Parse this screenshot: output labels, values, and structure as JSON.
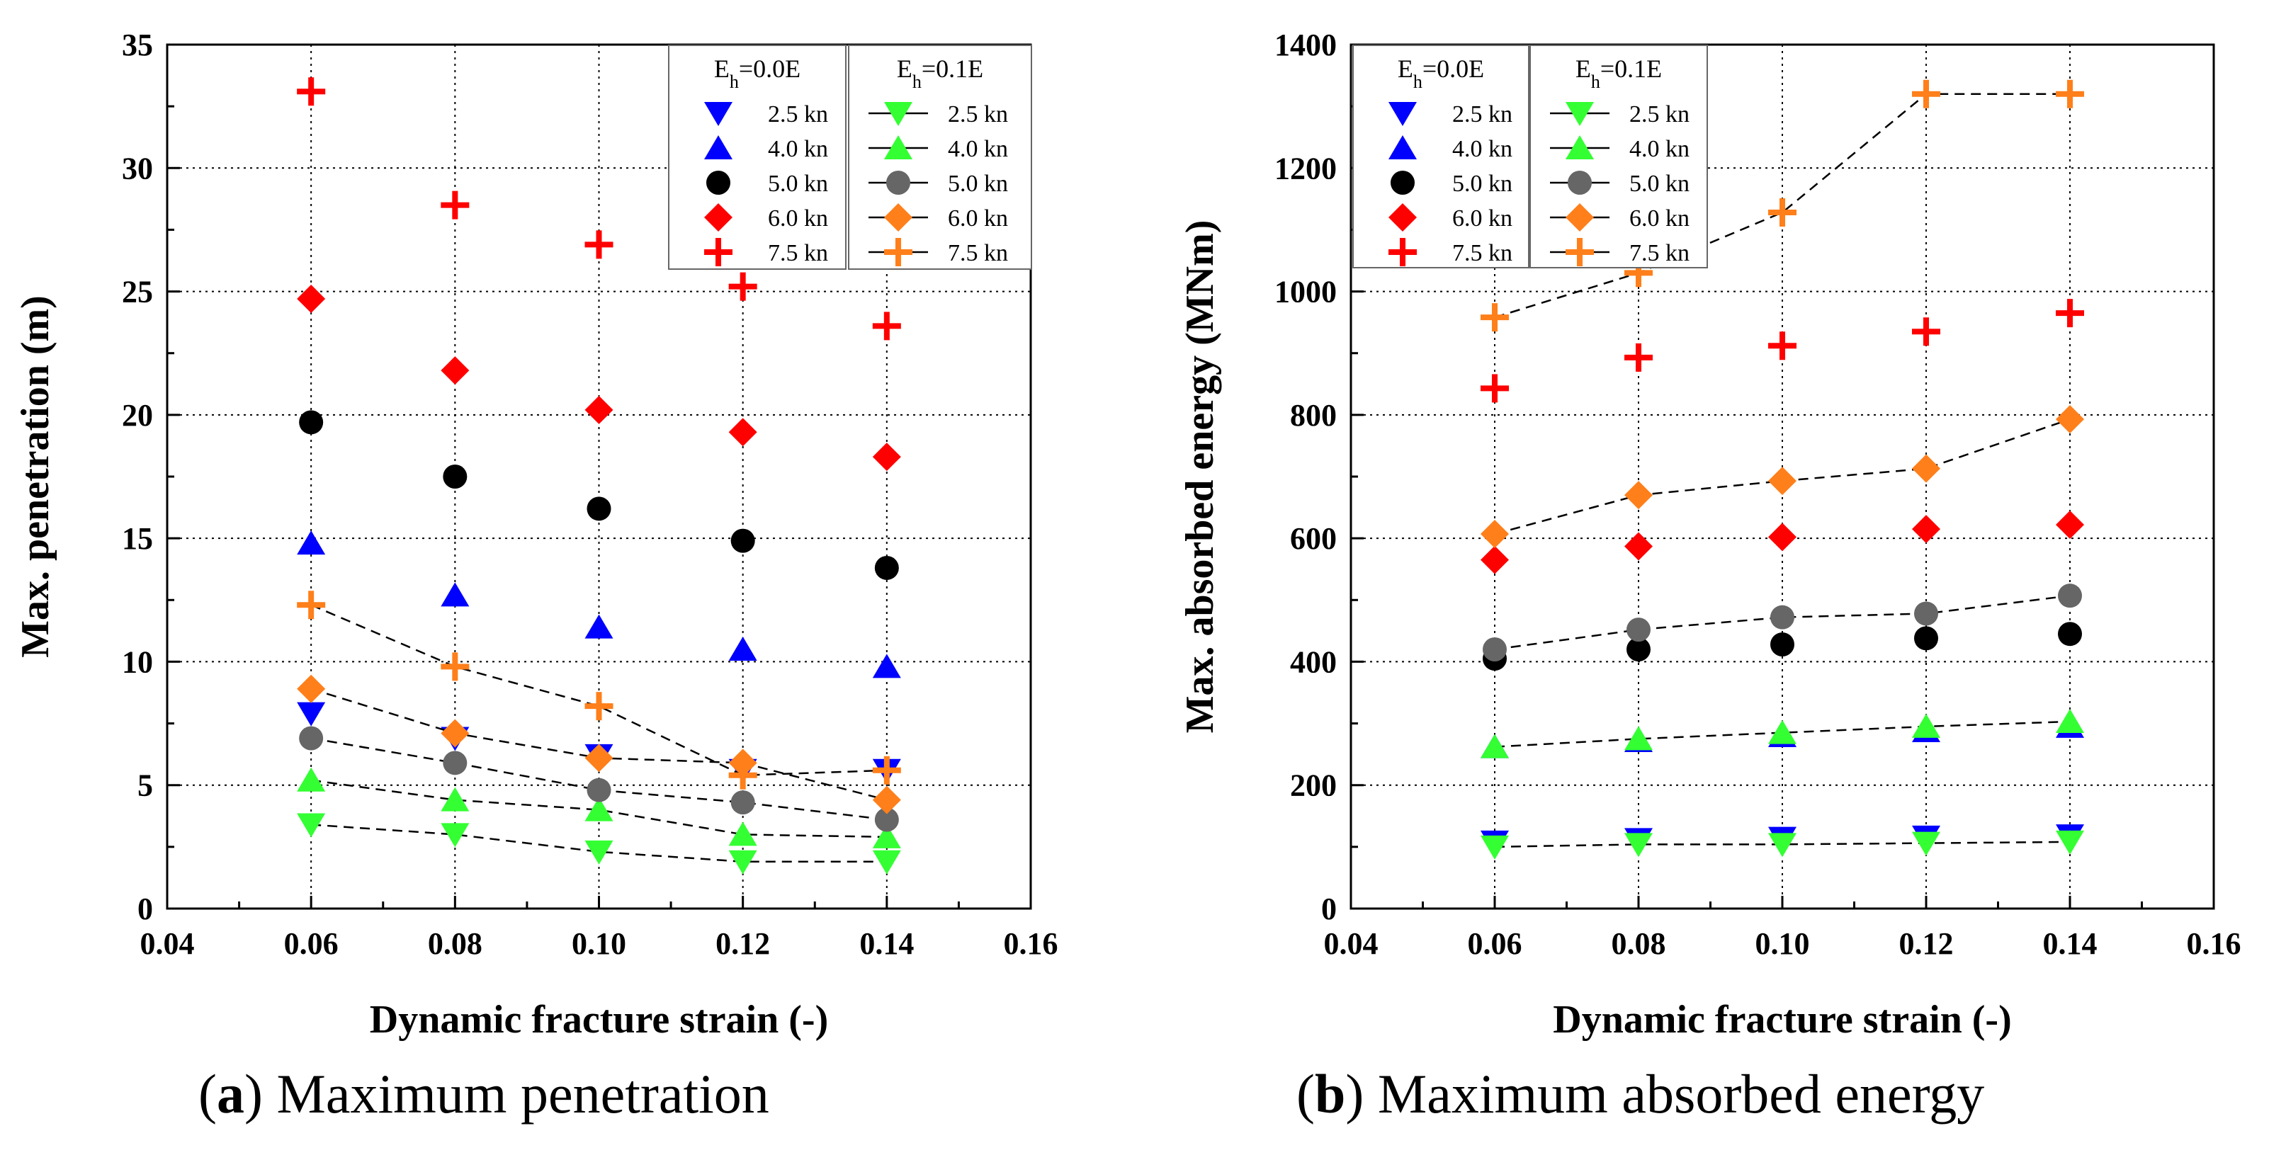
{
  "figure": {
    "captions": [
      {
        "letter": "a",
        "text": "Maximum penetration"
      },
      {
        "letter": "b",
        "text": "Maximum absorbed energy"
      }
    ]
  },
  "legend_groups": [
    {
      "title_prefix": "E",
      "title_sub": "h",
      "title_suffix": "=0.0E"
    },
    {
      "title_prefix": "E",
      "title_sub": "h",
      "title_suffix": "=0.1E"
    }
  ],
  "series_styles": [
    {
      "key": "2.5 kn",
      "marker": "triangle-down",
      "color_00": "#0000ff",
      "color_01": "#33ff33"
    },
    {
      "key": "4.0 kn",
      "marker": "triangle-up",
      "color_00": "#0000ff",
      "color_01": "#33ff33"
    },
    {
      "key": "5.0 kn",
      "marker": "circle",
      "color_00": "#000000",
      "color_01": "#666666"
    },
    {
      "key": "6.0 kn",
      "marker": "diamond",
      "color_00": "#ff0000",
      "color_01": "#ff7f1a"
    },
    {
      "key": "7.5 kn",
      "marker": "plus",
      "color_00": "#ff0000",
      "color_01": "#ff7f1a"
    }
  ],
  "chart_data": [
    {
      "type": "scatter",
      "xlabel": "Dynamic fracture strain (-)",
      "ylabel": "Max. penetration (m)",
      "xlim": [
        0.04,
        0.16
      ],
      "ylim": [
        0,
        35
      ],
      "xticks": [
        "0.04",
        "0.06",
        "0.08",
        "0.10",
        "0.12",
        "0.14",
        "0.16"
      ],
      "yticks": [
        "0",
        "5",
        "10",
        "15",
        "20",
        "25",
        "30",
        "35"
      ],
      "grid": true,
      "legend_position": "top-right",
      "x": [
        0.06,
        0.08,
        0.1,
        0.12,
        0.14
      ],
      "series": [
        {
          "name": "2.5 kn",
          "group": "Eh=0.0E",
          "values": [
            7.9,
            6.9,
            6.2,
            5.6,
            5.6
          ]
        },
        {
          "name": "4.0 kn",
          "group": "Eh=0.0E",
          "values": [
            14.8,
            12.7,
            11.4,
            10.5,
            9.8
          ]
        },
        {
          "name": "5.0 kn",
          "group": "Eh=0.0E",
          "values": [
            19.7,
            17.5,
            16.2,
            14.9,
            13.8
          ]
        },
        {
          "name": "6.0 kn",
          "group": "Eh=0.0E",
          "values": [
            24.7,
            21.8,
            20.2,
            19.3,
            18.3
          ]
        },
        {
          "name": "7.5 kn",
          "group": "Eh=0.0E",
          "values": [
            33.1,
            28.5,
            26.9,
            25.2,
            23.6
          ]
        },
        {
          "name": "2.5 kn",
          "group": "Eh=0.1E",
          "values": [
            3.4,
            3.0,
            2.3,
            1.9,
            1.9
          ]
        },
        {
          "name": "4.0 kn",
          "group": "Eh=0.1E",
          "values": [
            5.2,
            4.4,
            4.0,
            3.0,
            2.9
          ]
        },
        {
          "name": "5.0 kn",
          "group": "Eh=0.1E",
          "values": [
            6.9,
            5.9,
            4.8,
            4.3,
            3.6
          ]
        },
        {
          "name": "6.0 kn",
          "group": "Eh=0.1E",
          "values": [
            8.9,
            7.1,
            6.1,
            5.9,
            4.4
          ]
        },
        {
          "name": "7.5 kn",
          "group": "Eh=0.1E",
          "values": [
            12.3,
            9.8,
            8.2,
            5.4,
            5.6
          ]
        }
      ]
    },
    {
      "type": "scatter",
      "xlabel": "Dynamic fracture strain (-)",
      "ylabel": "Max. absorbed energy (MNm)",
      "xlim": [
        0.04,
        0.16
      ],
      "ylim": [
        0,
        1400
      ],
      "xticks": [
        "0.04",
        "0.06",
        "0.08",
        "0.10",
        "0.12",
        "0.14",
        "0.16"
      ],
      "yticks": [
        "0",
        "200",
        "400",
        "600",
        "800",
        "1000",
        "1200",
        "1400"
      ],
      "grid": true,
      "legend_position": "top-left",
      "x": [
        0.06,
        0.08,
        0.1,
        0.12,
        0.14
      ],
      "series": [
        {
          "name": "2.5 kn",
          "group": "Eh=0.0E",
          "values": [
            108,
            112,
            114,
            116,
            118
          ]
        },
        {
          "name": "4.0 kn",
          "group": "Eh=0.0E",
          "values": [
            262,
            272,
            280,
            288,
            295
          ]
        },
        {
          "name": "5.0 kn",
          "group": "Eh=0.0E",
          "values": [
            405,
            420,
            428,
            438,
            445
          ]
        },
        {
          "name": "6.0 kn",
          "group": "Eh=0.0E",
          "values": [
            565,
            587,
            602,
            615,
            622
          ]
        },
        {
          "name": "7.5 kn",
          "group": "Eh=0.0E",
          "values": [
            843,
            893,
            912,
            935,
            965
          ]
        },
        {
          "name": "2.5 kn",
          "group": "Eh=0.1E",
          "values": [
            100,
            104,
            104,
            106,
            108
          ]
        },
        {
          "name": "4.0 kn",
          "group": "Eh=0.1E",
          "values": [
            262,
            275,
            285,
            295,
            303
          ]
        },
        {
          "name": "5.0 kn",
          "group": "Eh=0.1E",
          "values": [
            420,
            452,
            472,
            478,
            507
          ]
        },
        {
          "name": "6.0 kn",
          "group": "Eh=0.1E",
          "values": [
            607,
            670,
            693,
            713,
            793
          ]
        },
        {
          "name": "7.5 kn",
          "group": "Eh=0.1E",
          "values": [
            958,
            1030,
            1128,
            1320,
            1320
          ]
        }
      ]
    }
  ]
}
